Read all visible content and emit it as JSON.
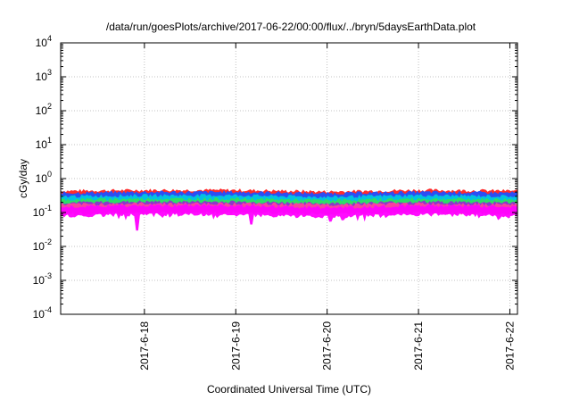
{
  "chart_data": {
    "type": "area",
    "title": "/data/run/goesPlots/archive/2017-06-22/00:00/flux/../bryn/5daysEarthData.plot",
    "xlabel": "Coordinated Universal Time (UTC)",
    "ylabel": "cGy/day",
    "yscale": "log",
    "ylim": [
      0.0001,
      10000
    ],
    "xlim": [
      "2017-06-17 02:00",
      "2017-06-22 02:00"
    ],
    "x_ticks": [
      "2017-6-18",
      "2017-6-19",
      "2017-6-20",
      "2017-6-21",
      "2017-6-22"
    ],
    "y_ticks": [
      {
        "value": 0.0001,
        "base": "10",
        "exp": "-4"
      },
      {
        "value": 0.001,
        "base": "10",
        "exp": "-3"
      },
      {
        "value": 0.01,
        "base": "10",
        "exp": "-2"
      },
      {
        "value": 0.1,
        "base": "10",
        "exp": "-1"
      },
      {
        "value": 1,
        "base": "10",
        "exp": "0"
      },
      {
        "value": 10,
        "base": "10",
        "exp": "1"
      },
      {
        "value": 100,
        "base": "10",
        "exp": "2"
      },
      {
        "value": 1000,
        "base": "10",
        "exp": "3"
      },
      {
        "value": 10000,
        "base": "10",
        "exp": "4"
      }
    ],
    "grid": true,
    "series": [
      {
        "color": "#ff2020",
        "x": [
          "2017-06-17 02:00",
          "2017-06-18 00:00",
          "2017-06-19 00:00",
          "2017-06-20 00:00",
          "2017-06-21 00:00",
          "2017-06-22 02:00"
        ],
        "values": [
          0.38,
          0.4,
          0.4,
          0.36,
          0.4,
          0.38
        ]
      },
      {
        "color": "#2050ff",
        "x": [
          "2017-06-17 02:00",
          "2017-06-18 00:00",
          "2017-06-19 00:00",
          "2017-06-20 00:00",
          "2017-06-21 00:00",
          "2017-06-22 02:00"
        ],
        "values": [
          0.33,
          0.35,
          0.35,
          0.32,
          0.35,
          0.33
        ]
      },
      {
        "color": "#00c8e0",
        "x": [
          "2017-06-17 02:00",
          "2017-06-18 00:00",
          "2017-06-19 00:00",
          "2017-06-20 00:00",
          "2017-06-21 00:00",
          "2017-06-22 02:00"
        ],
        "values": [
          0.26,
          0.28,
          0.28,
          0.25,
          0.28,
          0.26
        ]
      },
      {
        "color": "#30e060",
        "x": [
          "2017-06-17 02:00",
          "2017-06-18 00:00",
          "2017-06-19 00:00",
          "2017-06-20 00:00",
          "2017-06-21 00:00",
          "2017-06-22 02:00"
        ],
        "values": [
          0.21,
          0.22,
          0.22,
          0.2,
          0.22,
          0.21
        ]
      },
      {
        "color": "#9030d0",
        "x": [
          "2017-06-17 02:00",
          "2017-06-18 00:00",
          "2017-06-19 00:00",
          "2017-06-20 00:00",
          "2017-06-21 00:00",
          "2017-06-22 02:00"
        ],
        "values": [
          0.17,
          0.18,
          0.18,
          0.16,
          0.18,
          0.17
        ]
      },
      {
        "color": "#ff40a0",
        "x": [
          "2017-06-17 02:00",
          "2017-06-18 00:00",
          "2017-06-19 00:00",
          "2017-06-20 00:00",
          "2017-06-21 00:00",
          "2017-06-22 02:00"
        ],
        "values": [
          0.15,
          0.16,
          0.16,
          0.15,
          0.16,
          0.15
        ]
      },
      {
        "color": "#ff00ff",
        "x": [
          "2017-06-17 02:00",
          "2017-06-18 00:00",
          "2017-06-19 00:00",
          "2017-06-20 00:00",
          "2017-06-21 00:00",
          "2017-06-22 02:00"
        ],
        "values": [
          0.13,
          0.14,
          0.14,
          0.12,
          0.14,
          0.13
        ]
      }
    ],
    "dips": [
      {
        "x": "2017-06-17 22:00",
        "value": 0.03
      },
      {
        "x": "2017-06-19 04:00",
        "value": 0.045
      },
      {
        "x": "2017-06-20 01:00",
        "value": 0.055
      },
      {
        "x": "2017-06-20 04:00",
        "value": 0.06
      }
    ]
  }
}
